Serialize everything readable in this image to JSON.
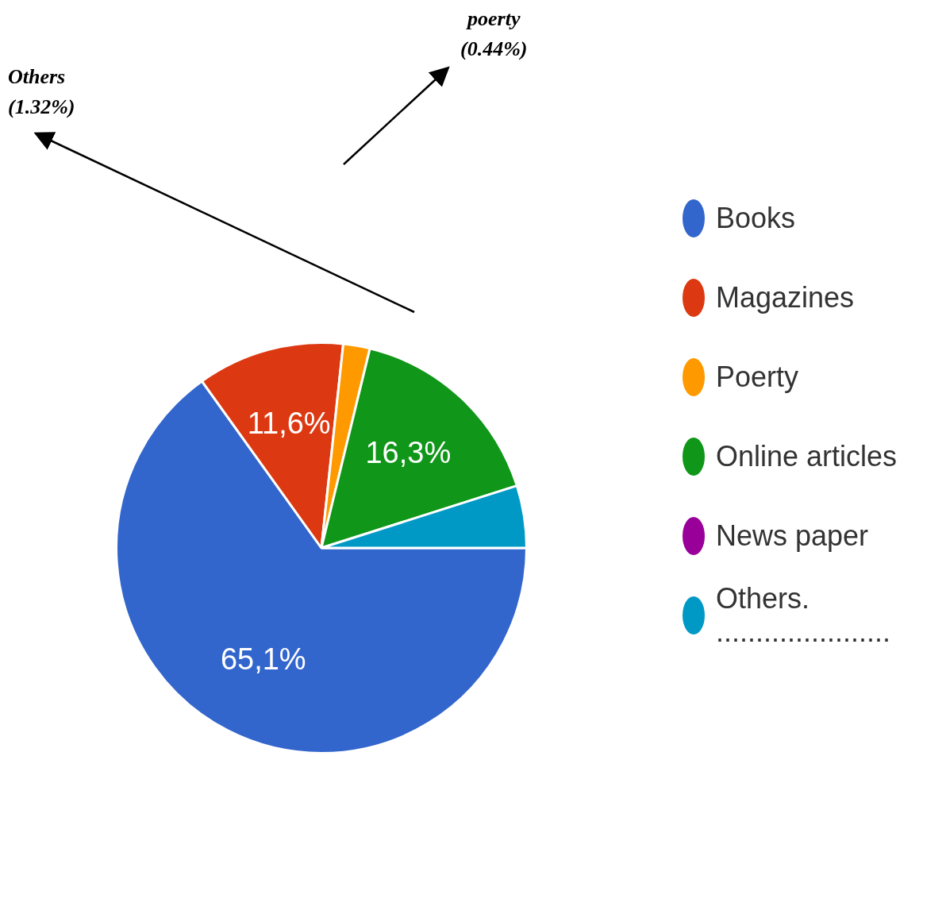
{
  "chart_data": {
    "type": "pie",
    "categories": [
      "Books",
      "Magazines",
      "Poerty",
      "Online articles",
      "News paper",
      "Others. ......................"
    ],
    "values": [
      65.1,
      11.6,
      2.1,
      16.3,
      0,
      4.9
    ],
    "colors": [
      "#3366cc",
      "#dc3912",
      "#ff9900",
      "#109618",
      "#990099",
      "#0099c6"
    ],
    "value_labels": [
      "65,1%",
      "11,6%",
      null,
      "16,3%",
      null,
      null
    ],
    "annotations": [
      "poerty\n(0.44%)",
      "Others\n(1.32%)"
    ],
    "legend": "right"
  }
}
